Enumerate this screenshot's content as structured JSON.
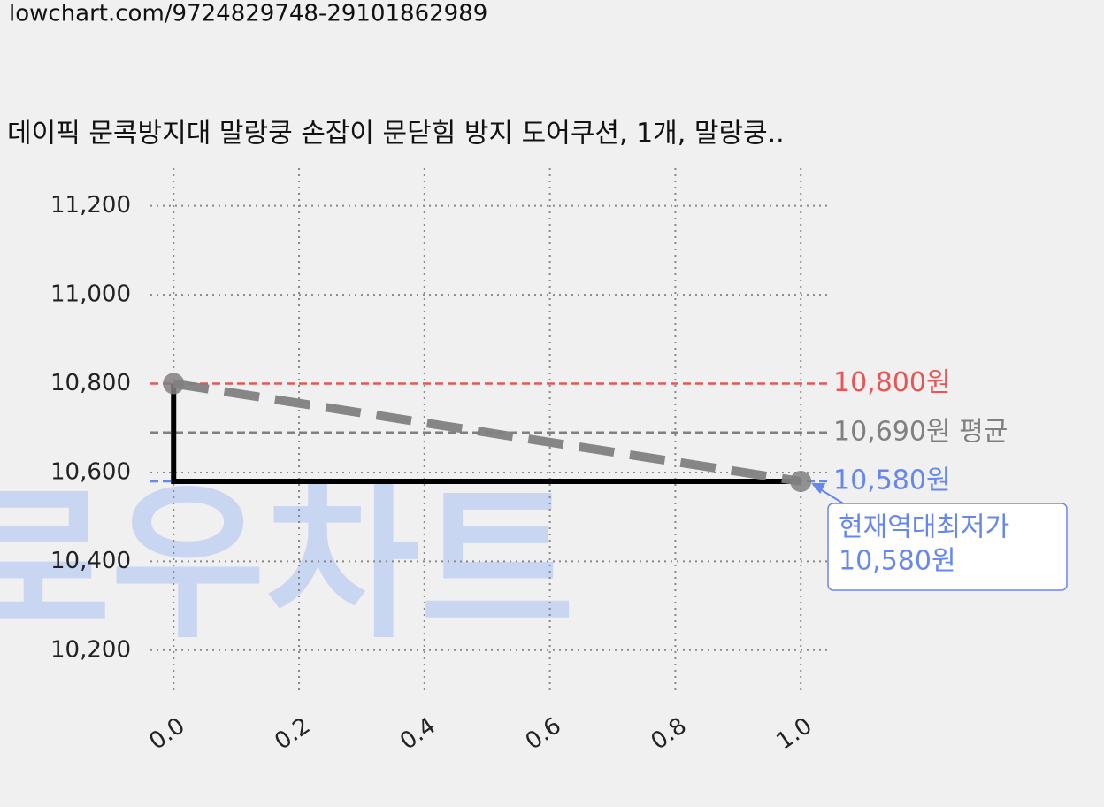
{
  "url": "lowchart.com/9724829748-29101862989",
  "watermark": "로우차트",
  "chart_data": {
    "type": "line",
    "title": "데이픽 문콕방지대 말랑쿵 손잡이 문닫힘 방지 도어쿠션, 1개, 말랑쿵..",
    "xlim": [
      -0.037,
      1.042
    ],
    "ylim": [
      10100,
      11285
    ],
    "xticks": [
      {
        "value": 0,
        "label": "0.0"
      },
      {
        "value": 0.2,
        "label": "0.2"
      },
      {
        "value": 0.4,
        "label": "0.4"
      },
      {
        "value": 0.6,
        "label": "0.6"
      },
      {
        "value": 0.8,
        "label": "0.8"
      },
      {
        "value": 1,
        "label": "1.0"
      }
    ],
    "yticks": [
      {
        "value": 10200,
        "label": "10,200"
      },
      {
        "value": 10400,
        "label": "10,400"
      },
      {
        "value": 10600,
        "label": "10,600"
      },
      {
        "value": 10800,
        "label": "10,800"
      },
      {
        "value": 11000,
        "label": "11,000"
      },
      {
        "value": 11200,
        "label": "11,200"
      }
    ],
    "grid": true,
    "series": [
      {
        "color": "#000000",
        "style": "solid",
        "x": [
          0,
          0,
          1
        ],
        "values": [
          10800,
          10580,
          10580
        ]
      },
      {
        "color": "#808080",
        "style": "dashed",
        "markers": true,
        "x": [
          0,
          1
        ],
        "values": [
          10800,
          10580
        ]
      }
    ],
    "hlines": [
      {
        "value": 10800,
        "label": "10,800원",
        "color": "#e85555"
      },
      {
        "value": 10690,
        "label": "10,690원 평균",
        "color": "#808080"
      },
      {
        "value": 10580,
        "label": "10,580원",
        "color": "#6688ee"
      }
    ],
    "annotation": {
      "lines": [
        "현재역대최저가",
        "10,580원"
      ],
      "x": 1,
      "y": 10580,
      "color": "#6688ee"
    }
  }
}
